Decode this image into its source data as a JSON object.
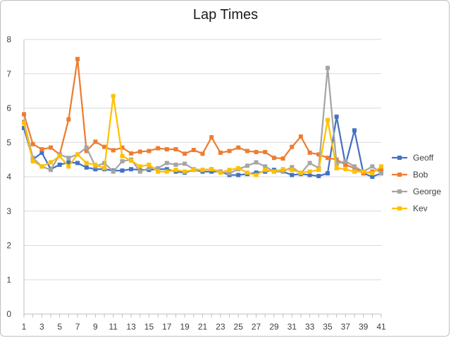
{
  "chart_data": {
    "type": "line",
    "title": "Lap Times",
    "xlabel": "",
    "ylabel": "",
    "xlim": [
      1,
      41
    ],
    "ylim": [
      0,
      8
    ],
    "y_ticks": [
      0,
      1,
      2,
      3,
      4,
      5,
      6,
      7,
      8
    ],
    "x_tick_labels": [
      1,
      3,
      5,
      7,
      9,
      11,
      13,
      15,
      17,
      19,
      21,
      23,
      25,
      27,
      29,
      31,
      33,
      35,
      37,
      39,
      41
    ],
    "grid": "horizontal",
    "legend_position": "right",
    "x": [
      1,
      2,
      3,
      4,
      5,
      6,
      7,
      8,
      9,
      10,
      11,
      12,
      13,
      14,
      15,
      16,
      17,
      18,
      19,
      20,
      21,
      22,
      23,
      24,
      25,
      26,
      27,
      28,
      29,
      30,
      31,
      32,
      33,
      34,
      35,
      36,
      37,
      38,
      39,
      40,
      41
    ],
    "series": [
      {
        "name": "Geoff",
        "color": "#4472c4",
        "marker": "square",
        "values": [
          5.42,
          4.5,
          4.7,
          4.22,
          4.35,
          4.42,
          4.4,
          4.27,
          4.22,
          4.22,
          4.18,
          4.18,
          4.22,
          4.2,
          4.2,
          4.22,
          4.22,
          4.15,
          4.12,
          4.2,
          4.15,
          4.15,
          4.15,
          4.05,
          4.05,
          4.08,
          4.12,
          4.15,
          4.2,
          4.15,
          4.05,
          4.08,
          4.05,
          4.02,
          4.1,
          5.75,
          4.35,
          5.35,
          4.1,
          4.0,
          4.1
        ]
      },
      {
        "name": "Bob",
        "color": "#ed7d31",
        "marker": "square",
        "values": [
          5.82,
          4.95,
          4.8,
          4.85,
          4.65,
          5.67,
          7.43,
          4.75,
          5.02,
          4.87,
          4.77,
          4.85,
          4.68,
          4.73,
          4.75,
          4.83,
          4.8,
          4.8,
          4.67,
          4.78,
          4.67,
          5.15,
          4.7,
          4.75,
          4.85,
          4.75,
          4.72,
          4.72,
          4.55,
          4.53,
          4.87,
          5.17,
          4.7,
          4.65,
          4.55,
          4.5,
          4.35,
          4.25,
          4.1,
          4.15,
          4.22
        ]
      },
      {
        "name": "George",
        "color": "#a5a5a5",
        "marker": "square",
        "values": [
          5.6,
          4.55,
          4.3,
          4.2,
          4.65,
          4.55,
          4.65,
          4.85,
          4.3,
          4.4,
          4.15,
          4.45,
          4.5,
          4.15,
          4.25,
          4.25,
          4.4,
          4.35,
          4.38,
          4.22,
          4.2,
          4.22,
          4.15,
          4.1,
          4.22,
          4.32,
          4.42,
          4.3,
          4.15,
          4.15,
          4.28,
          4.1,
          4.4,
          4.25,
          7.17,
          4.38,
          4.45,
          4.3,
          4.15,
          4.3,
          4.1
        ]
      },
      {
        "name": "Kev",
        "color": "#ffc000",
        "marker": "square",
        "values": [
          5.57,
          4.45,
          4.3,
          4.42,
          4.6,
          4.3,
          4.65,
          4.4,
          4.35,
          4.25,
          6.35,
          4.6,
          4.47,
          4.3,
          4.35,
          4.15,
          4.15,
          4.2,
          4.15,
          4.2,
          4.2,
          4.22,
          4.12,
          4.2,
          4.25,
          4.12,
          4.05,
          4.2,
          4.15,
          4.22,
          4.2,
          4.12,
          4.15,
          4.2,
          5.65,
          4.25,
          4.22,
          4.15,
          4.15,
          4.1,
          4.3
        ]
      }
    ]
  }
}
